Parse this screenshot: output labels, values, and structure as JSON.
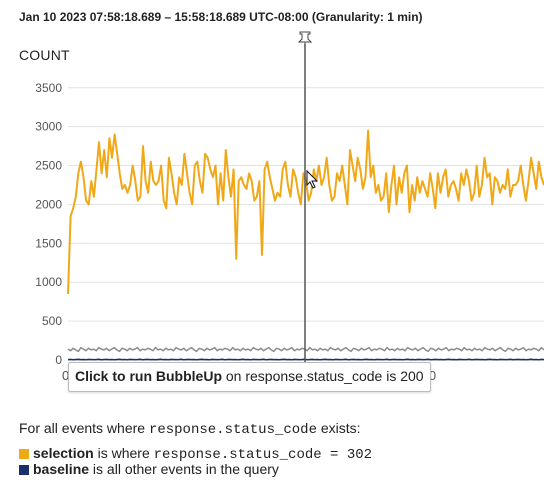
{
  "header": {
    "title": "Jan 10 2023 07:58:18.689 – 15:58:18.689 UTC-08:00 (Granularity: 1 min)",
    "y_axis_label": "COUNT"
  },
  "tooltip": {
    "action": "Click to run BubbleUp",
    "rest": " on response.status_code is 200"
  },
  "x_axis": {
    "left_fragment": "08",
    "right_fragment": ":00"
  },
  "legend": {
    "intro_prefix": "For all events where ",
    "intro_code": "response.status_code",
    "intro_suffix": " exists:",
    "selection_label": "selection",
    "selection_mid": " is where ",
    "selection_code": "response.status_code = 302",
    "baseline_label": "baseline",
    "baseline_rest": " is all other events in the query",
    "selection_color": "#f0a817",
    "baseline_color": "#1b2f6b"
  },
  "chart_data": {
    "type": "line",
    "ylabel": "COUNT",
    "ylim": [
      0,
      3600
    ],
    "yticks": [
      0,
      500,
      1000,
      1500,
      2000,
      2500,
      3000,
      3500
    ],
    "grid": true,
    "cursor_icon": "pin-icon",
    "series": [
      {
        "color": "#f0a817",
        "values": [
          850,
          1850,
          1950,
          2100,
          2400,
          2550,
          2350,
          2050,
          2000,
          2300,
          2100,
          2450,
          2800,
          2400,
          2700,
          2350,
          2850,
          2600,
          2900,
          2650,
          2400,
          2200,
          2250,
          2150,
          2250,
          2500,
          2300,
          2050,
          2100,
          2750,
          2300,
          2150,
          2550,
          2300,
          2250,
          2300,
          2500,
          2050,
          1950,
          2600,
          2400,
          2150,
          2000,
          2350,
          2250,
          2650,
          2400,
          2150,
          2000,
          2500,
          2550,
          2300,
          2150,
          2650,
          2600,
          2450,
          2350,
          2500,
          2000,
          2400,
          2050,
          2700,
          2350,
          2100,
          2450,
          1300,
          2300,
          2350,
          2250,
          2200,
          2400,
          2300,
          2050,
          2100,
          2300,
          1350,
          2450,
          2550,
          2350,
          2200,
          2050,
          2150,
          2100,
          2450,
          2550,
          2250,
          2100,
          2450,
          2350,
          2150,
          2000,
          2400,
          2300,
          2050,
          2150,
          2450,
          2300,
          2500,
          2250,
          2350,
          2600,
          2250,
          2050,
          2100,
          2400,
          2300,
          2500,
          2250,
          2000,
          2700,
          2500,
          2300,
          2600,
          2450,
          2200,
          2350,
          2950,
          2350,
          2500,
          2150,
          2250,
          2050,
          2100,
          2400,
          1900,
          2250,
          2500,
          2000,
          2350,
          2150,
          2400,
          2500,
          1900,
          2250,
          2050,
          2350,
          2150,
          2300,
          2200,
          2100,
          2400,
          2200,
          1950,
          2400,
          2150,
          2350,
          2450,
          2100,
          2250,
          2300,
          2200,
          2050,
          2400,
          2250,
          2450,
          2300,
          2050,
          2150,
          2500,
          2100,
          2250,
          2600,
          2350,
          2400,
          2000,
          2350,
          2300,
          2150,
          2250,
          2200,
          2450,
          2100,
          2250,
          2250,
          2300,
          2500,
          2250,
          2050,
          2300,
          2600,
          2400,
          2200,
          2550,
          2350,
          2250
        ]
      },
      {
        "color": "#8c8c8c",
        "values": [
          140,
          120,
          150,
          130,
          110,
          160,
          140,
          120,
          150,
          130,
          140,
          120,
          160,
          140,
          130,
          150,
          120,
          140,
          160,
          130,
          110,
          150,
          140,
          120,
          150,
          130,
          140,
          160,
          120,
          140,
          130,
          150,
          140,
          120,
          160,
          130,
          140,
          120,
          150,
          130,
          140,
          120,
          160,
          140,
          130,
          150,
          120,
          140,
          160,
          130,
          110,
          150,
          140,
          120,
          150,
          130,
          140,
          160,
          120,
          140,
          130,
          150,
          140,
          120,
          160,
          130,
          140,
          120,
          150,
          130,
          140,
          120,
          160,
          140,
          130,
          150,
          120,
          140,
          160,
          130,
          110,
          150,
          140,
          120,
          150,
          130,
          140,
          160,
          120,
          140,
          130,
          150,
          140,
          120,
          160,
          130,
          140,
          120,
          150,
          130,
          140,
          120,
          160,
          140,
          130,
          150,
          120,
          140,
          160,
          130,
          110,
          150,
          140,
          120,
          150,
          130,
          140,
          160,
          120,
          140,
          130,
          150,
          140,
          120,
          160,
          130,
          140,
          120,
          150,
          130,
          140,
          120,
          160,
          140,
          130,
          150,
          120,
          140,
          160,
          130,
          110,
          150,
          140,
          120,
          150,
          130,
          140,
          160,
          120,
          140,
          130,
          150,
          140,
          120,
          160,
          130,
          140,
          120,
          150,
          130,
          140,
          120,
          160,
          140,
          130,
          150,
          120,
          140,
          160,
          130,
          110,
          150,
          140,
          120,
          150,
          130,
          140,
          160,
          120,
          140,
          130,
          150,
          140,
          120,
          160,
          130
        ]
      },
      {
        "color": "#1b2f6b",
        "values": [
          5,
          8,
          4,
          6,
          9,
          5,
          7,
          4,
          8,
          6,
          5,
          7,
          9,
          4,
          6,
          8,
          5,
          7,
          4,
          6,
          9,
          5,
          7,
          4,
          8,
          6,
          5,
          7,
          9,
          4,
          6,
          8,
          5,
          7,
          4,
          6,
          9,
          5,
          7,
          4,
          8,
          6,
          5,
          7,
          9,
          4,
          6,
          8,
          5,
          7,
          4,
          6,
          9,
          5,
          7,
          4,
          8,
          6,
          5,
          7,
          9,
          4,
          6,
          8,
          5,
          7,
          4,
          6,
          9,
          5,
          7,
          4,
          8,
          6,
          5,
          7,
          9,
          4,
          6,
          8,
          5,
          7,
          4,
          6,
          9,
          5,
          7,
          4,
          8,
          6,
          5,
          7,
          9,
          4,
          6,
          8,
          5,
          7,
          4,
          6,
          9,
          5,
          7,
          4,
          8,
          6,
          5,
          7,
          9,
          4,
          6,
          8,
          5,
          7,
          4,
          6,
          9,
          5,
          7,
          4,
          8,
          6,
          5,
          7,
          9,
          4,
          6,
          8,
          5,
          7,
          4,
          6,
          9,
          5,
          7,
          4,
          8,
          6,
          5,
          7,
          9,
          4,
          6,
          8,
          5,
          7,
          4,
          6,
          9,
          5,
          7,
          4,
          8,
          6,
          5,
          7,
          9,
          4,
          6,
          8,
          5,
          7,
          4,
          6,
          9,
          5,
          7,
          4,
          8,
          6,
          5,
          7,
          9,
          4,
          6,
          8,
          5,
          7,
          4,
          6,
          9,
          5,
          7,
          4,
          8,
          6
        ]
      }
    ]
  }
}
